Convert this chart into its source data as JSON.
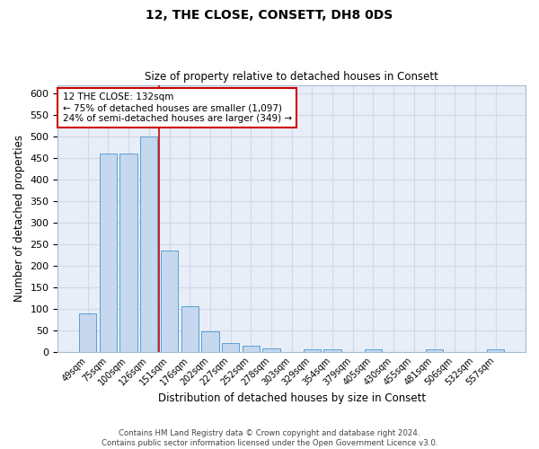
{
  "title_line1": "12, THE CLOSE, CONSETT, DH8 0DS",
  "title_line2": "Size of property relative to detached houses in Consett",
  "xlabel": "Distribution of detached houses by size in Consett",
  "ylabel": "Number of detached properties",
  "categories": [
    "49sqm",
    "75sqm",
    "100sqm",
    "126sqm",
    "151sqm",
    "176sqm",
    "202sqm",
    "227sqm",
    "252sqm",
    "278sqm",
    "303sqm",
    "329sqm",
    "354sqm",
    "379sqm",
    "405sqm",
    "430sqm",
    "455sqm",
    "481sqm",
    "506sqm",
    "532sqm",
    "557sqm"
  ],
  "values": [
    88,
    460,
    460,
    500,
    235,
    105,
    47,
    20,
    13,
    7,
    0,
    5,
    5,
    0,
    5,
    0,
    0,
    5,
    0,
    0,
    5
  ],
  "bar_color": "#c5d8ee",
  "bar_edge_color": "#5a9fd4",
  "red_line_x": 3.5,
  "annotation_text": "12 THE CLOSE: 132sqm\n← 75% of detached houses are smaller (1,097)\n24% of semi-detached houses are larger (349) →",
  "annotation_box_color": "#ffffff",
  "annotation_box_edge": "#cc0000",
  "grid_color": "#d0d8e8",
  "background_color": "#e8eef8",
  "ylim": [
    0,
    620
  ],
  "yticks": [
    0,
    50,
    100,
    150,
    200,
    250,
    300,
    350,
    400,
    450,
    500,
    550,
    600
  ],
  "footer_line1": "Contains HM Land Registry data © Crown copyright and database right 2024.",
  "footer_line2": "Contains public sector information licensed under the Open Government Licence v3.0."
}
